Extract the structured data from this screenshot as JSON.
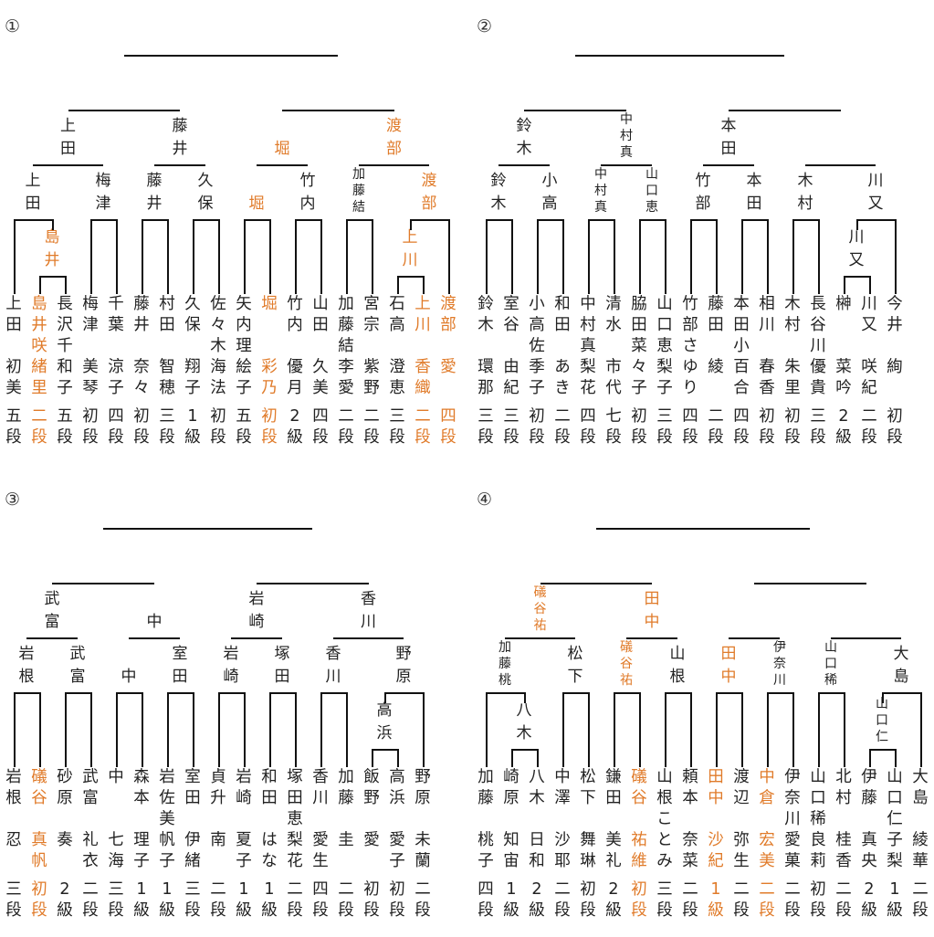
{
  "win_color": "#e07b2a",
  "brackets": [
    {
      "label": "①",
      "players": [
        {
          "name": "上田",
          "given": "初美",
          "rank": "五段",
          "w": false
        },
        {
          "name": "島井",
          "given": "咲緒里",
          "rank": "二段",
          "w": true
        },
        {
          "name": "長沢千",
          "given": "和子",
          "rank": "五段",
          "w": false
        },
        {
          "name": "梅津",
          "given": "美琴",
          "rank": "初段",
          "w": false
        },
        {
          "name": "千葉",
          "given": "涼子",
          "rank": "四段",
          "w": false
        },
        {
          "name": "藤井",
          "given": "奈々",
          "rank": "初段",
          "w": false
        },
        {
          "name": "村田",
          "given": "智穂",
          "rank": "三段",
          "w": false
        },
        {
          "name": "久保",
          "given": "翔子",
          "rank": "1級",
          "w": false
        },
        {
          "name": "佐々木",
          "given": "海法",
          "rank": "初段",
          "w": false
        },
        {
          "name": "矢内理",
          "given": "絵子",
          "rank": "五段",
          "w": false
        },
        {
          "name": "堀",
          "given": "彩乃",
          "rank": "初段",
          "w": true
        },
        {
          "name": "竹内",
          "given": "優月",
          "rank": "2級",
          "w": false
        },
        {
          "name": "山田",
          "given": "久美",
          "rank": "四段",
          "w": false
        },
        {
          "name": "加藤結",
          "given": "李愛",
          "rank": "二段",
          "w": false
        },
        {
          "name": "宮宗",
          "given": "紫野",
          "rank": "二段",
          "w": false
        },
        {
          "name": "石高",
          "given": "澄恵",
          "rank": "三段",
          "w": false
        },
        {
          "name": "上川",
          "given": "香織",
          "rank": "二段",
          "w": true
        },
        {
          "name": "渡部",
          "given": "愛",
          "rank": "四段",
          "w": true
        }
      ],
      "r1": [
        {
          "text": "島井",
          "w": true
        },
        {
          "text": "上川",
          "w": true
        }
      ],
      "r2": [
        {
          "text": "上田",
          "w": false
        },
        {
          "text": "梅津",
          "w": false
        },
        {
          "text": "藤井",
          "w": false
        },
        {
          "text": "久保",
          "w": false
        },
        {
          "text": "堀",
          "w": true
        },
        {
          "text": "竹内",
          "w": false
        },
        {
          "text": "加藤結",
          "w": false
        },
        {
          "text": "渡部",
          "w": true
        }
      ],
      "r3": [
        {
          "text": "上田",
          "w": false
        },
        {
          "text": "藤井",
          "w": false
        },
        {
          "text": "堀",
          "w": true
        },
        {
          "text": "渡部",
          "w": true
        }
      ]
    },
    {
      "label": "②",
      "players": [
        {
          "name": "鈴木",
          "given": "環那",
          "rank": "三段",
          "w": false
        },
        {
          "name": "室谷",
          "given": "由紀",
          "rank": "三段",
          "w": false
        },
        {
          "name": "小高佐",
          "given": "季子",
          "rank": "初段",
          "w": false
        },
        {
          "name": "和田",
          "given": "あき",
          "rank": "二段",
          "w": false
        },
        {
          "name": "中村真",
          "given": "梨花",
          "rank": "四段",
          "w": false
        },
        {
          "name": "清水",
          "given": "市代",
          "rank": "七段",
          "w": false
        },
        {
          "name": "脇田菜",
          "given": "々子",
          "rank": "初段",
          "w": false
        },
        {
          "name": "山口恵",
          "given": "梨子",
          "rank": "三段",
          "w": false
        },
        {
          "name": "竹部さ",
          "given": "ゆり",
          "rank": "四段",
          "w": false
        },
        {
          "name": "藤田",
          "given": "綾",
          "rank": "二段",
          "w": false
        },
        {
          "name": "本田小",
          "given": "百合",
          "rank": "四段",
          "w": false
        },
        {
          "name": "相川",
          "given": "春香",
          "rank": "初段",
          "w": false
        },
        {
          "name": "木村",
          "given": "朱里",
          "rank": "初段",
          "w": false
        },
        {
          "name": "長谷川",
          "given": "優貴",
          "rank": "三段",
          "w": false
        },
        {
          "name": "榊",
          "given": "菜吟",
          "rank": "2級",
          "w": false
        },
        {
          "name": "川又",
          "given": "咲紀",
          "rank": "二段",
          "w": false
        },
        {
          "name": "今井",
          "given": "絢",
          "rank": "初段",
          "w": false
        }
      ],
      "r1": [
        {
          "text": "川又",
          "w": false
        }
      ],
      "r2": [
        {
          "text": "鈴木",
          "w": false
        },
        {
          "text": "小高",
          "w": false
        },
        {
          "text": "中村真",
          "w": false
        },
        {
          "text": "山口恵",
          "w": false
        },
        {
          "text": "竹部",
          "w": false
        },
        {
          "text": "本田",
          "w": false
        },
        {
          "text": "木村",
          "w": false
        },
        {
          "text": "川又",
          "w": false
        }
      ],
      "r3": [
        {
          "text": "鈴木",
          "w": false
        },
        {
          "text": "中村真",
          "w": false
        },
        {
          "text": "本田",
          "w": false
        }
      ]
    },
    {
      "label": "③",
      "players": [
        {
          "name": "岩根",
          "given": "忍",
          "rank": "三段",
          "w": false
        },
        {
          "name": "礒谷",
          "given": "真帆",
          "rank": "初段",
          "w": true
        },
        {
          "name": "砂原",
          "given": "奏",
          "rank": "2級",
          "w": false
        },
        {
          "name": "武富",
          "given": "礼衣",
          "rank": "二段",
          "w": false
        },
        {
          "name": "中",
          "given": "七海",
          "rank": "三段",
          "w": false
        },
        {
          "name": "森本",
          "given": "理子",
          "rank": "1級",
          "w": false
        },
        {
          "name": "岩佐美",
          "given": "帆子",
          "rank": "1級",
          "w": false
        },
        {
          "name": "室田",
          "given": "伊緒",
          "rank": "三段",
          "w": false
        },
        {
          "name": "貞升",
          "given": "南",
          "rank": "二段",
          "w": false
        },
        {
          "name": "岩崎",
          "given": "夏子",
          "rank": "1級",
          "w": false
        },
        {
          "name": "和田",
          "given": "はな",
          "rank": "1級",
          "w": false
        },
        {
          "name": "塚田恵",
          "given": "梨花",
          "rank": "二段",
          "w": false
        },
        {
          "name": "香川",
          "given": "愛生",
          "rank": "四段",
          "w": false
        },
        {
          "name": "加藤",
          "given": "圭",
          "rank": "二段",
          "w": false
        },
        {
          "name": "飯野",
          "given": "愛",
          "rank": "初段",
          "w": false
        },
        {
          "name": "高浜",
          "given": "愛子",
          "rank": "初段",
          "w": false
        },
        {
          "name": "野原",
          "given": "未蘭",
          "rank": "二段",
          "w": false
        }
      ],
      "r1": [
        {
          "text": "高浜",
          "w": false
        }
      ],
      "r2": [
        {
          "text": "岩根",
          "w": false
        },
        {
          "text": "武富",
          "w": false
        },
        {
          "text": "中",
          "w": false
        },
        {
          "text": "室田",
          "w": false
        },
        {
          "text": "岩崎",
          "w": false
        },
        {
          "text": "塚田",
          "w": false
        },
        {
          "text": "香川",
          "w": false
        },
        {
          "text": "野原",
          "w": false
        }
      ],
      "r3": [
        {
          "text": "武富",
          "w": false
        },
        {
          "text": "中",
          "w": false
        },
        {
          "text": "岩崎",
          "w": false
        },
        {
          "text": "香川",
          "w": false
        }
      ]
    },
    {
      "label": "④",
      "players": [
        {
          "name": "加藤",
          "given": "桃子",
          "rank": "四段",
          "w": false
        },
        {
          "name": "崎原",
          "given": "知宙",
          "rank": "1級",
          "w": false
        },
        {
          "name": "八木",
          "given": "日和",
          "rank": "2級",
          "w": false
        },
        {
          "name": "中澤",
          "given": "沙耶",
          "rank": "二段",
          "w": false
        },
        {
          "name": "松下",
          "given": "舞琳",
          "rank": "初段",
          "w": false
        },
        {
          "name": "鎌田",
          "given": "美礼",
          "rank": "2級",
          "w": false
        },
        {
          "name": "礒谷",
          "given": "祐維",
          "rank": "初段",
          "w": true
        },
        {
          "name": "山根こ",
          "given": "とみ",
          "rank": "三段",
          "w": false
        },
        {
          "name": "頼本",
          "given": "奈菜",
          "rank": "二段",
          "w": false
        },
        {
          "name": "田中",
          "given": "沙紀",
          "rank": "1級",
          "w": true
        },
        {
          "name": "渡辺",
          "given": "弥生",
          "rank": "二段",
          "w": false
        },
        {
          "name": "中倉",
          "given": "宏美",
          "rank": "二段",
          "w": true
        },
        {
          "name": "伊奈川",
          "given": "愛菓",
          "rank": "二段",
          "w": false
        },
        {
          "name": "山口稀",
          "given": "良莉",
          "rank": "初段",
          "w": false
        },
        {
          "name": "北村",
          "given": "桂香",
          "rank": "二段",
          "w": false
        },
        {
          "name": "伊藤",
          "given": "真央",
          "rank": "2級",
          "w": false
        },
        {
          "name": "山口仁",
          "given": "子梨",
          "rank": "1級",
          "w": false
        },
        {
          "name": "大島",
          "given": "綾華",
          "rank": "二段",
          "w": false
        }
      ],
      "r1": [
        {
          "text": "八木",
          "w": false
        },
        {
          "text": "山口仁",
          "w": false
        }
      ],
      "r2": [
        {
          "text": "加藤桃",
          "w": false
        },
        {
          "text": "松下",
          "w": false
        },
        {
          "text": "礒谷祐",
          "w": true
        },
        {
          "text": "山根",
          "w": false
        },
        {
          "text": "田中",
          "w": true
        },
        {
          "text": "伊奈川",
          "w": false
        },
        {
          "text": "山口稀",
          "w": false
        },
        {
          "text": "大島",
          "w": false
        }
      ],
      "r3": [
        {
          "text": "礒谷祐",
          "w": true
        },
        {
          "text": "田中",
          "w": true
        }
      ]
    }
  ]
}
